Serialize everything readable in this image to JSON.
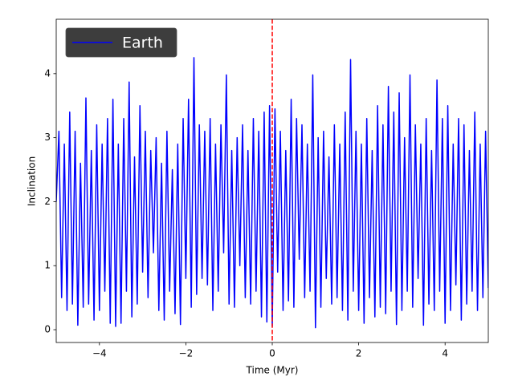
{
  "chart_data": {
    "type": "line",
    "xlabel": "Time (Myr)",
    "ylabel": "Inclination",
    "xlim": [
      -5,
      5
    ],
    "ylim": [
      -0.2,
      4.85
    ],
    "xticks": [
      {
        "value": -4,
        "label": "−4"
      },
      {
        "value": -2,
        "label": "−2"
      },
      0,
      2,
      4
    ],
    "yticks": [
      0,
      1,
      2,
      3,
      4
    ],
    "legend": "upper left",
    "vline": {
      "x": 0,
      "color": "#ff0000"
    },
    "x": [
      -5,
      -4.9375,
      -4.875,
      -4.8125,
      -4.75,
      -4.6875,
      -4.625,
      -4.5625,
      -4.5,
      -4.4375,
      -4.375,
      -4.3125,
      -4.25,
      -4.1875,
      -4.125,
      -4.0625,
      -4,
      -3.9375,
      -3.875,
      -3.8125,
      -3.75,
      -3.6875,
      -3.625,
      -3.5625,
      -3.5,
      -3.4375,
      -3.375,
      -3.3125,
      -3.25,
      -3.1875,
      -3.125,
      -3.0625,
      -3,
      -2.9375,
      -2.875,
      -2.8125,
      -2.75,
      -2.6875,
      -2.625,
      -2.5625,
      -2.5,
      -2.4375,
      -2.375,
      -2.3125,
      -2.25,
      -2.1875,
      -2.125,
      -2.0625,
      -2,
      -1.9375,
      -1.875,
      -1.8125,
      -1.75,
      -1.6875,
      -1.625,
      -1.5625,
      -1.5,
      -1.4375,
      -1.375,
      -1.3125,
      -1.25,
      -1.1875,
      -1.125,
      -1.0625,
      -1,
      -0.9375,
      -0.875,
      -0.8125,
      -0.75,
      -0.6875,
      -0.625,
      -0.5625,
      -0.5,
      -0.4375,
      -0.375,
      -0.3125,
      -0.25,
      -0.1875,
      -0.125,
      -0.0625,
      0,
      0.0625,
      0.125,
      0.1875,
      0.25,
      0.3125,
      0.375,
      0.4375,
      0.5,
      0.5625,
      0.625,
      0.6875,
      0.75,
      0.8125,
      0.875,
      0.9375,
      1,
      1.0625,
      1.125,
      1.1875,
      1.25,
      1.3125,
      1.375,
      1.4375,
      1.5,
      1.5625,
      1.625,
      1.6875,
      1.75,
      1.8125,
      1.875,
      1.9375,
      2,
      2.0625,
      2.125,
      2.1875,
      2.25,
      2.3125,
      2.375,
      2.4375,
      2.5,
      2.5625,
      2.625,
      2.6875,
      2.75,
      2.8125,
      2.875,
      2.9375,
      3,
      3.0625,
      3.125,
      3.1875,
      3.25,
      3.3125,
      3.375,
      3.4375,
      3.5,
      3.5625,
      3.625,
      3.6875,
      3.75,
      3.8125,
      3.875,
      3.9375,
      4,
      4.0625,
      4.125,
      4.1875,
      4.25,
      4.3125,
      4.375,
      4.4375,
      4.5,
      4.5625,
      4.625,
      4.6875,
      4.75,
      4.8125,
      4.875,
      4.9375,
      5
    ],
    "series": [
      {
        "name": "Earth",
        "color": "#0000ff",
        "values": [
          2.0,
          3.1,
          0.5,
          2.9,
          0.3,
          3.4,
          0.4,
          3.1,
          0.07,
          2.6,
          0.35,
          3.62,
          0.4,
          2.8,
          0.15,
          3.2,
          0.3,
          2.9,
          0.6,
          3.3,
          0.1,
          3.6,
          0.05,
          2.9,
          0.1,
          3.3,
          0.6,
          3.87,
          0.2,
          2.7,
          0.4,
          3.5,
          0.9,
          3.1,
          0.5,
          2.8,
          1.2,
          3.0,
          0.3,
          2.6,
          0.15,
          3.1,
          0.6,
          2.5,
          0.25,
          2.9,
          0.08,
          3.3,
          0.8,
          3.6,
          0.35,
          4.25,
          0.55,
          3.2,
          0.8,
          3.1,
          0.7,
          3.3,
          0.3,
          2.9,
          0.6,
          3.2,
          1.2,
          3.98,
          0.4,
          2.8,
          0.35,
          3.0,
          1.0,
          3.2,
          0.5,
          2.8,
          0.4,
          3.3,
          0.6,
          3.1,
          0.2,
          3.4,
          0.12,
          3.5,
          0.05,
          3.45,
          0.9,
          3.1,
          0.3,
          2.8,
          0.45,
          3.6,
          0.35,
          3.3,
          1.1,
          3.2,
          0.5,
          2.9,
          0.6,
          3.98,
          0.03,
          3.0,
          0.35,
          3.1,
          0.8,
          2.7,
          0.4,
          3.2,
          0.5,
          2.9,
          0.3,
          3.4,
          0.15,
          4.22,
          0.6,
          3.1,
          0.3,
          2.9,
          0.1,
          3.3,
          0.5,
          2.8,
          0.2,
          3.5,
          0.35,
          3.2,
          0.25,
          3.8,
          0.6,
          3.4,
          0.08,
          3.7,
          0.3,
          3.0,
          0.6,
          3.98,
          0.35,
          3.2,
          0.8,
          2.9,
          0.07,
          3.3,
          0.4,
          2.8,
          0.3,
          3.9,
          0.6,
          3.3,
          0.1,
          3.5,
          0.3,
          2.9,
          0.7,
          3.3,
          0.15,
          3.2,
          0.4,
          2.8,
          0.6,
          3.4,
          0.3,
          2.9,
          0.5,
          3.1,
          0.65
        ]
      }
    ]
  }
}
